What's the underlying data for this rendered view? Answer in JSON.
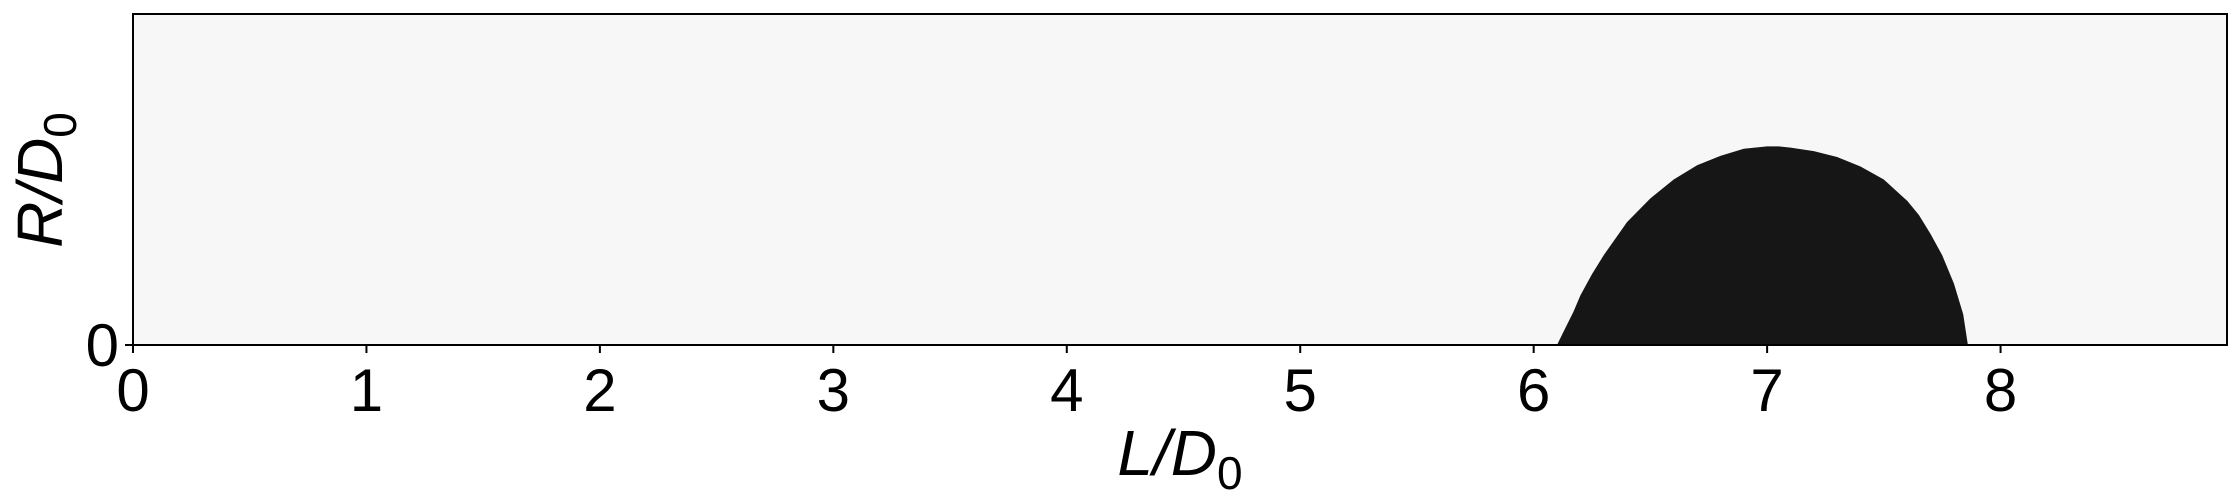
{
  "chart_data": {
    "type": "area",
    "title": "",
    "xlabel": {
      "main": "L/D",
      "sub": "0"
    },
    "ylabel": {
      "main": "R/D",
      "sub": "0"
    },
    "xlim": [
      0,
      8.97
    ],
    "ylim": [
      0,
      1.4
    ],
    "xticks": [
      0,
      1,
      2,
      3,
      4,
      5,
      6,
      7,
      8
    ],
    "xtick_labels": [
      "0",
      "1",
      "2",
      "3",
      "4",
      "5",
      "6",
      "7",
      "8"
    ],
    "yticks": [
      0
    ],
    "ytick_labels": [
      "0"
    ],
    "grid": false,
    "background_color": "#f7f7f7",
    "series": [
      {
        "fill_color": "#161616",
        "x": [
          6.1,
          6.13,
          6.17,
          6.2,
          6.25,
          6.3,
          6.35,
          6.4,
          6.5,
          6.6,
          6.7,
          6.8,
          6.9,
          7.0,
          7.05,
          7.1,
          7.2,
          7.3,
          7.4,
          7.5,
          7.6,
          7.65,
          7.7,
          7.75,
          7.8,
          7.84,
          7.86
        ],
        "y": [
          0.0,
          0.06,
          0.14,
          0.21,
          0.3,
          0.38,
          0.45,
          0.52,
          0.62,
          0.7,
          0.76,
          0.8,
          0.83,
          0.84,
          0.84,
          0.835,
          0.82,
          0.795,
          0.755,
          0.7,
          0.61,
          0.55,
          0.47,
          0.38,
          0.26,
          0.13,
          0.0
        ]
      }
    ]
  }
}
